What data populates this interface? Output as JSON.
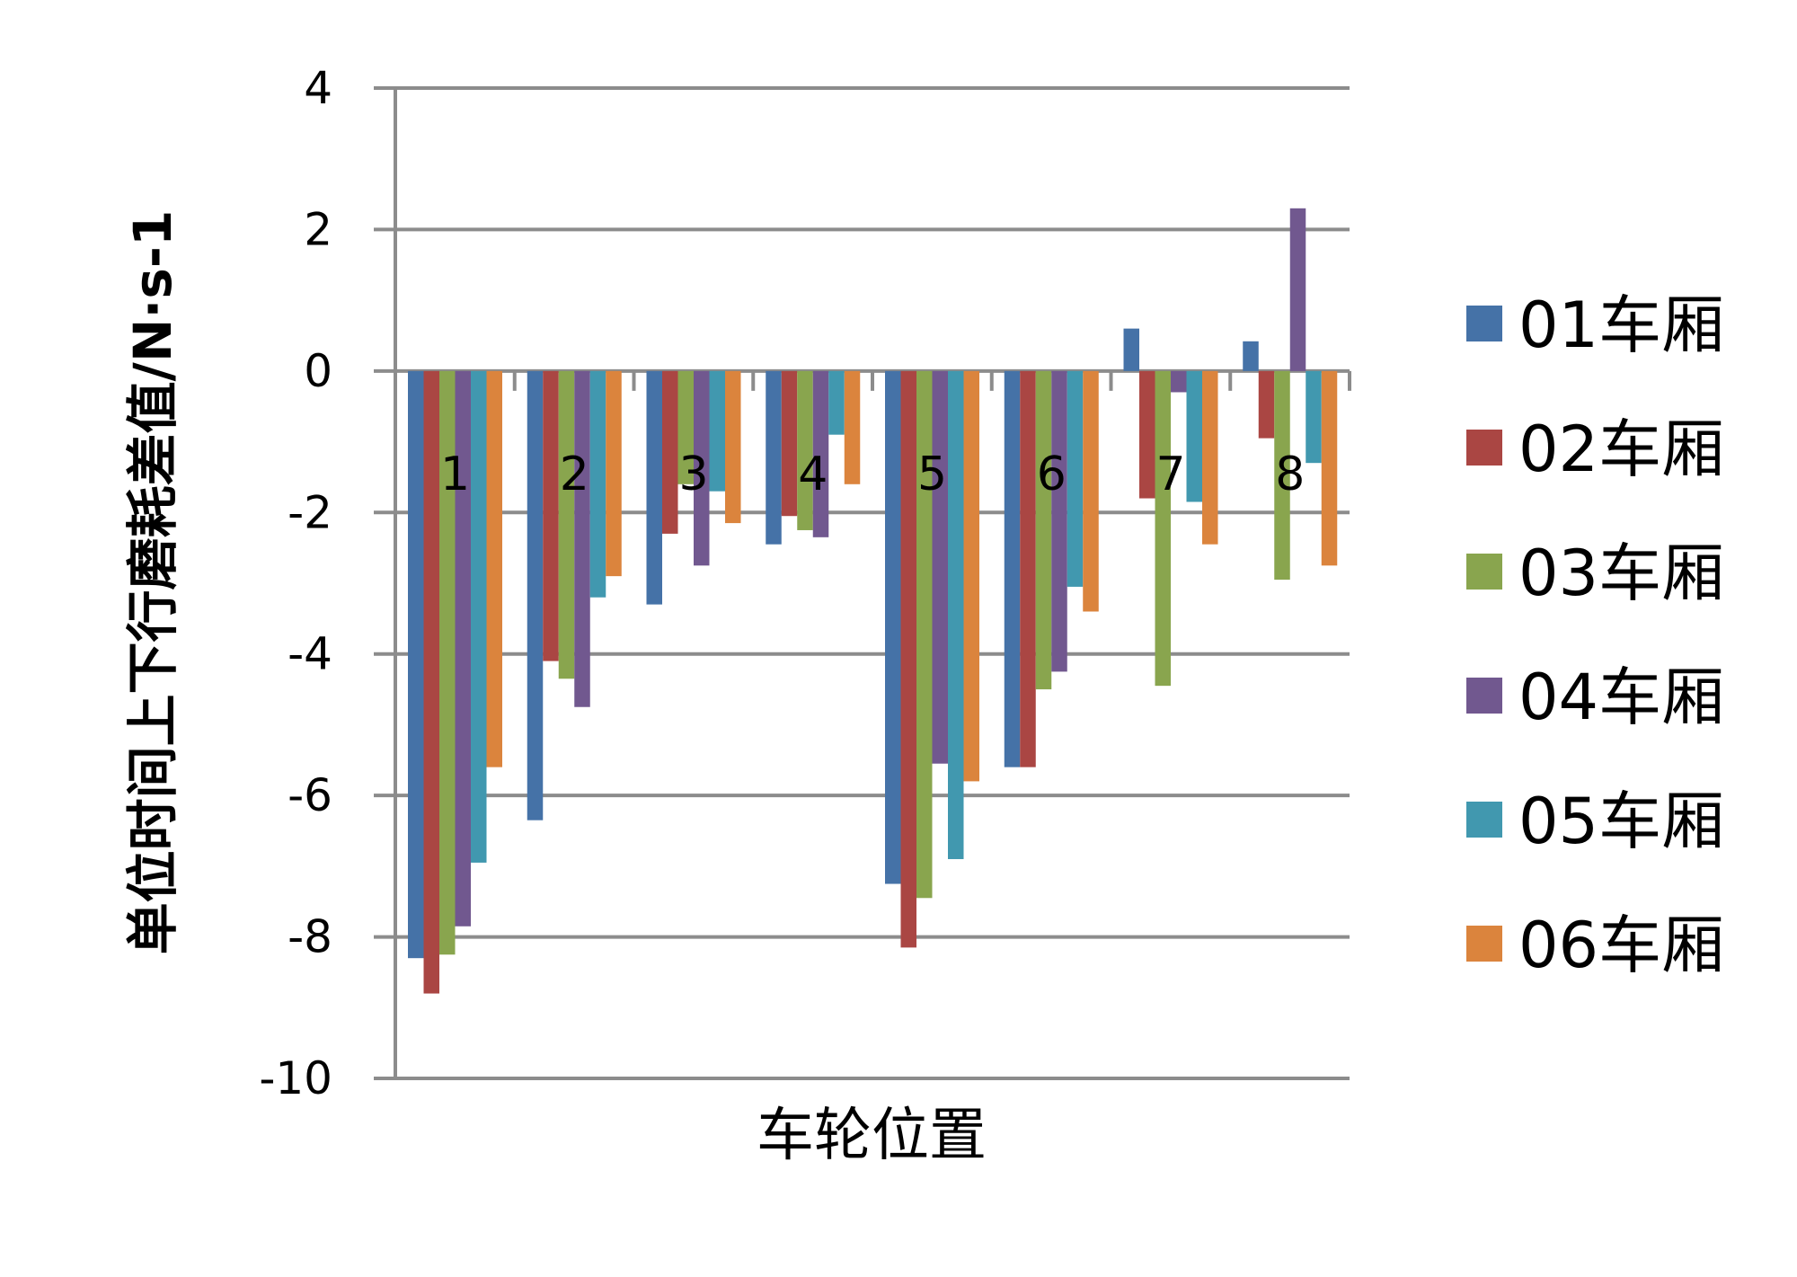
{
  "chart_data": {
    "type": "bar",
    "xlabel": "车轮位置",
    "ylabel": "单位时间上下行磨耗差值/N·s-1",
    "ylim": [
      -10,
      4
    ],
    "yticks": [
      4,
      2,
      0,
      -2,
      -4,
      -6,
      -8,
      -10
    ],
    "grid": true,
    "legend_position": "right",
    "categories": [
      "1",
      "2",
      "3",
      "4",
      "5",
      "6",
      "7",
      "8"
    ],
    "series": [
      {
        "name": "01车厢",
        "color": "#4572A7",
        "values": [
          -8.3,
          -6.35,
          -3.3,
          -2.45,
          -7.25,
          -5.6,
          0.6,
          0.42
        ]
      },
      {
        "name": "02车厢",
        "color": "#AA4643",
        "values": [
          -8.8,
          -4.1,
          -2.3,
          -2.05,
          -8.15,
          -5.6,
          -1.8,
          -0.95
        ]
      },
      {
        "name": "03车厢",
        "color": "#89A54E",
        "values": [
          -8.25,
          -4.35,
          -1.6,
          -2.25,
          -7.45,
          -4.5,
          -4.45,
          -2.95
        ]
      },
      {
        "name": "04车厢",
        "color": "#71588F",
        "values": [
          -7.85,
          -4.75,
          -2.75,
          -2.35,
          -5.55,
          -4.25,
          -0.3,
          2.3
        ]
      },
      {
        "name": "05车厢",
        "color": "#4198AF",
        "values": [
          -6.95,
          -3.2,
          -1.7,
          -0.9,
          -6.9,
          -3.05,
          -1.85,
          -1.3
        ]
      },
      {
        "name": "06车厢",
        "color": "#DB843D",
        "values": [
          -5.6,
          -2.9,
          -2.15,
          -1.6,
          -5.8,
          -3.4,
          -2.45,
          -2.75
        ]
      }
    ]
  }
}
